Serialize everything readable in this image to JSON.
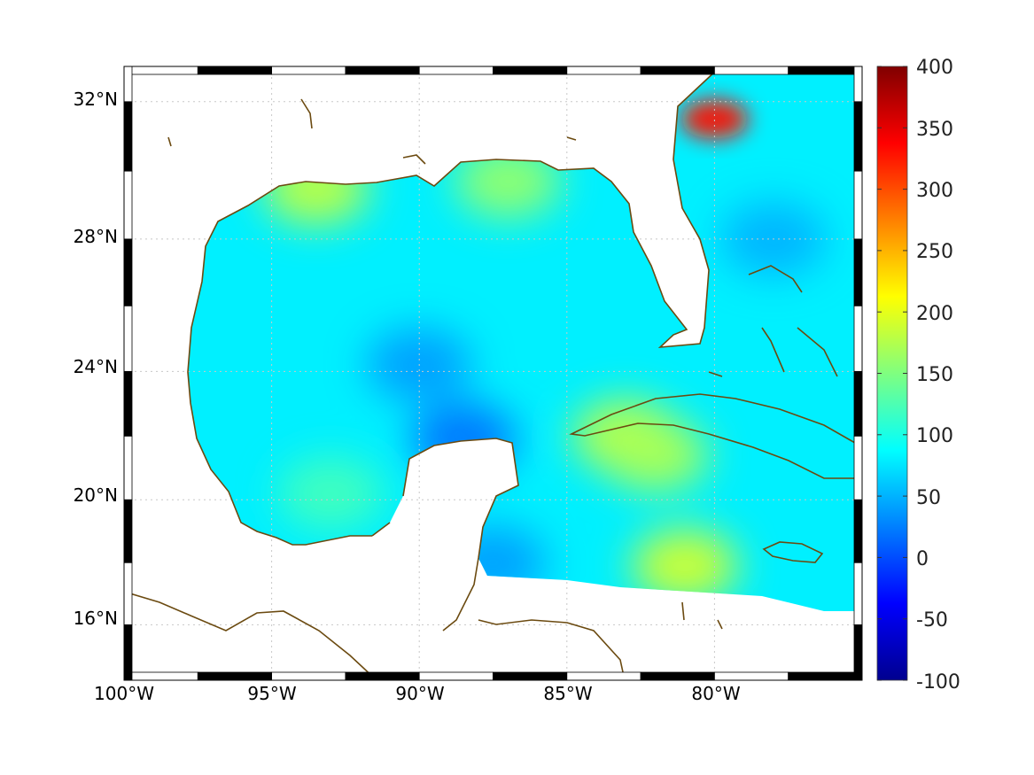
{
  "chart_data": {
    "type": "heatmap",
    "map_region": "Gulf of Mexico and Caribbean",
    "projection": "mercator",
    "lon_range": [
      -100,
      -75
    ],
    "lat_range": [
      14.2,
      33
    ],
    "x_ticks": [
      {
        "value": -100,
        "label": "100°W"
      },
      {
        "value": -95,
        "label": "95°W"
      },
      {
        "value": -90,
        "label": "90°W"
      },
      {
        "value": -85,
        "label": "85°W"
      },
      {
        "value": -80,
        "label": "80°W"
      }
    ],
    "y_ticks": [
      {
        "value": 32,
        "label": "32°N"
      },
      {
        "value": 28,
        "label": "28°N"
      },
      {
        "value": 24,
        "label": "24°N"
      },
      {
        "value": 20,
        "label": "20°N"
      },
      {
        "value": 16,
        "label": "16°N"
      }
    ],
    "grid": "dotted",
    "frame": "alternating black and white",
    "coastline_color": "#6b4a10",
    "colorbar": {
      "orientation": "vertical",
      "placement": "right",
      "colormap": "jet",
      "range": [
        -100,
        400
      ],
      "ticks": [
        {
          "value": 400,
          "label": "400"
        },
        {
          "value": 350,
          "label": "350"
        },
        {
          "value": 300,
          "label": "300"
        },
        {
          "value": 250,
          "label": "250"
        },
        {
          "value": 200,
          "label": "200"
        },
        {
          "value": 150,
          "label": "150"
        },
        {
          "value": 100,
          "label": "100"
        },
        {
          "value": 50,
          "label": "50"
        },
        {
          "value": 0,
          "label": "0"
        },
        {
          "value": -50,
          "label": "-50"
        },
        {
          "value": -100,
          "label": "-100"
        }
      ]
    },
    "field_features": [
      {
        "lon": -80.0,
        "lat": 31.5,
        "value": 330
      },
      {
        "lon": -81.0,
        "lat": 17.9,
        "value": 190
      },
      {
        "lon": -83.0,
        "lat": 22.0,
        "value": 180
      },
      {
        "lon": -82.0,
        "lat": 21.4,
        "value": 170
      },
      {
        "lon": -93.5,
        "lat": 29.5,
        "value": 180
      },
      {
        "lon": -87.0,
        "lat": 29.7,
        "value": 160
      },
      {
        "lon": -88.5,
        "lat": 21.9,
        "value": 20
      },
      {
        "lon": -90.0,
        "lat": 24.2,
        "value": 40
      },
      {
        "lon": -87.5,
        "lat": 18.0,
        "value": 40
      },
      {
        "lon": -78.0,
        "lat": 28.0,
        "value": 50
      },
      {
        "lon": -93.0,
        "lat": 20.2,
        "value": 120
      }
    ],
    "field_background_value": 80
  }
}
